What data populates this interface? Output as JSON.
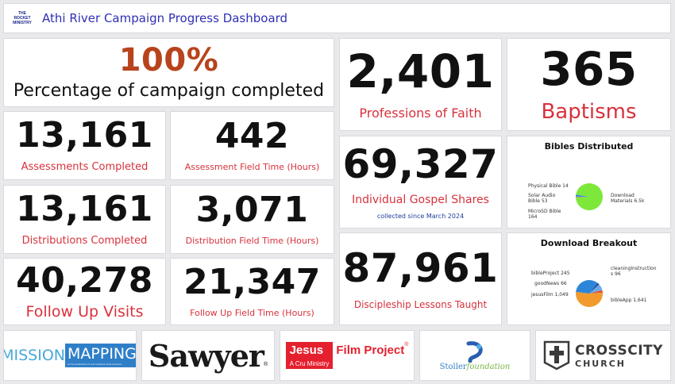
{
  "header": {
    "logo_line1": "THE ROCKET",
    "logo_line2": "MINISTRY",
    "title": "Athi River Campaign Progress Dashboard"
  },
  "campaign": {
    "value": "100%",
    "label": "Percentage of campaign completed"
  },
  "stats": {
    "assessments": {
      "value": "13,161",
      "label": "Assessments Completed"
    },
    "assessment_time": {
      "value": "442",
      "label": "Assessment Field Time (Hours)"
    },
    "distributions": {
      "value": "13,161",
      "label": "Distributions Completed"
    },
    "distribution_time": {
      "value": "3,071",
      "label": "Distribution Field Time (Hours)"
    },
    "followups": {
      "value": "40,278",
      "label": "Follow Up Visits"
    },
    "followup_time": {
      "value": "21,347",
      "label": "Follow Up Field Time (Hours)"
    },
    "professions": {
      "value": "2,401",
      "label": "Professions of Faith"
    },
    "baptisms": {
      "value": "365",
      "label": "Baptisms"
    },
    "gospel": {
      "value": "69,327",
      "label": "Individual Gospel Shares",
      "note": "collected since March 2024"
    },
    "discipleship": {
      "value": "87,961",
      "label": "Discipleship Lessons Taught"
    }
  },
  "chart_data": [
    {
      "type": "pie",
      "title": "Bibles Distributed",
      "categories": [
        "Download Materials",
        "Physical Bible",
        "Solar Audio Bible",
        "MicroSD Bible"
      ],
      "values": [
        6500,
        14,
        53,
        164
      ],
      "labels": [
        "Download Materials 6.5k",
        "Physical Bible 14",
        "Solar Audio Bible 53",
        "MicroSD Bible 164"
      ],
      "colors": [
        "#7ee83a",
        "#1e3f9a",
        "#f29a36",
        "#2b8de0"
      ]
    },
    {
      "type": "pie",
      "title": "Download Breakout",
      "categories": [
        "bibleApp",
        "jesusFilm",
        "goodNews",
        "bibleProject",
        "cleaningInstructions"
      ],
      "values": [
        1641,
        1049,
        66,
        245,
        96
      ],
      "labels": [
        "bibleApp 1,641",
        "jesusFilm 1,049",
        "goodNews 66",
        "bibleProject 245",
        "cleaningInstructions 96"
      ],
      "colors": [
        "#f39a2e",
        "#2c86d8",
        "#1f3d8f",
        "#6aa9e8",
        "#e5542e"
      ]
    }
  ],
  "partners": {
    "mission_mapping": {
      "word1": "MISSION",
      "word2": "MAPPING",
      "tagline": "for the Establishment and Sustained Data Solutions"
    },
    "sawyer": {
      "name": "Sawyer"
    },
    "jesus_film": {
      "word1": "Jesus",
      "word2": "Film Project",
      "sub": "A Cru Ministry"
    },
    "stoller": {
      "name1": "Stoller",
      "name2": "foundation"
    },
    "crosscity": {
      "line1": "CROSSCITY",
      "line2": "CHURCH"
    }
  },
  "colors": {
    "accent_red": "#d8323c",
    "campaign_orange": "#b8431c",
    "title_blue": "#2f2fb5"
  }
}
